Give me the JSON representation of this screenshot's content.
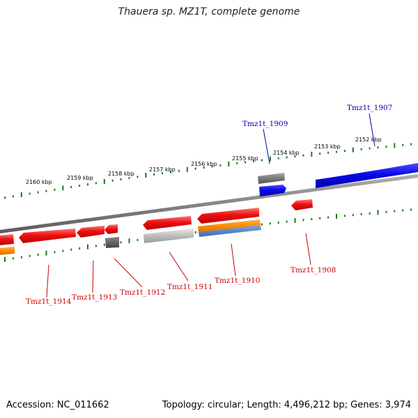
{
  "title": "Thauera sp. MZ1T, complete genome",
  "footer": {
    "accession": "Accession: NC_011662",
    "summary": "Topology: circular; Length: 4,496,212 bp; Genes: 3,974"
  },
  "colors": {
    "backbone": "#7a7a7a",
    "scale": "#1a7a1a",
    "gene_red": "#ee1111",
    "gene_blue": "#0a0ae6",
    "gene_orange": "#ff8c00",
    "gene_steel": "#4a7fbf",
    "gene_gray": "#b8b8b8",
    "gene_dark": "#555555",
    "label_red": "#cc0000",
    "label_blue": "#0000aa"
  },
  "scale_labels": [
    {
      "id": "2152",
      "text": "2152 kbp"
    },
    {
      "id": "2153",
      "text": "2153 kbp"
    },
    {
      "id": "2154",
      "text": "2154 kbp"
    },
    {
      "id": "2155",
      "text": "2155 kbp"
    },
    {
      "id": "2156",
      "text": "2156 kbp"
    },
    {
      "id": "2157",
      "text": "2157 kbp"
    },
    {
      "id": "2158",
      "text": "2158 kbp"
    },
    {
      "id": "2159",
      "text": "2159 kbp"
    },
    {
      "id": "2160",
      "text": "2160 kbp"
    }
  ],
  "gene_labels": [
    {
      "id": "tmz1t_1907",
      "text": "Tmz1t_1907",
      "strand": "forward"
    },
    {
      "id": "tmz1t_1909",
      "text": "Tmz1t_1909",
      "strand": "forward"
    },
    {
      "id": "tmz1t_1908",
      "text": "Tmz1t_1908",
      "strand": "reverse"
    },
    {
      "id": "tmz1t_1910",
      "text": "Tmz1t_1910",
      "strand": "reverse"
    },
    {
      "id": "tmz1t_1911",
      "text": "Tmz1t_1911",
      "strand": "reverse"
    },
    {
      "id": "tmz1t_1912",
      "text": "Tmz1t_1912",
      "strand": "reverse"
    },
    {
      "id": "tmz1t_1913",
      "text": "Tmz1t_1913",
      "strand": "reverse"
    },
    {
      "id": "tmz1t_1914",
      "text": "Tmz1t_1914",
      "strand": "reverse"
    }
  ]
}
